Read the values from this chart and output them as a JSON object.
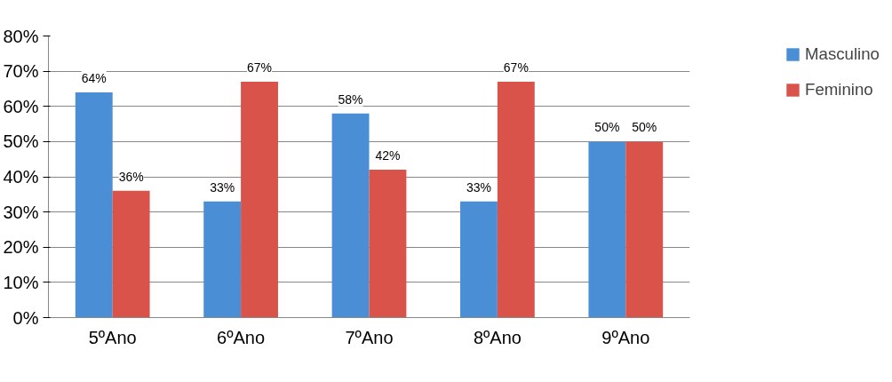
{
  "chart_data": {
    "type": "bar",
    "categories": [
      "5ºAno",
      "6ºAno",
      "7ºAno",
      "8ºAno",
      "9ºAno"
    ],
    "series": [
      {
        "name": "Masculino",
        "color": "#4a8fd6",
        "values": [
          64,
          33,
          58,
          33,
          50
        ],
        "value_labels": [
          "64%",
          "33%",
          "58%",
          "33%",
          "50%"
        ]
      },
      {
        "name": "Feminino",
        "color": "#d9534a",
        "values": [
          36,
          67,
          42,
          67,
          50
        ],
        "value_labels": [
          "36%",
          "67%",
          "42%",
          "67%",
          "50%"
        ]
      }
    ],
    "ylim": [
      0,
      80
    ],
    "yticks": [
      {
        "value": 0,
        "label": "0%"
      },
      {
        "value": 10,
        "label": "10%"
      },
      {
        "value": 20,
        "label": "20%"
      },
      {
        "value": 30,
        "label": "30%"
      },
      {
        "value": 40,
        "label": "40%"
      },
      {
        "value": 50,
        "label": "50%"
      },
      {
        "value": 60,
        "label": "60%"
      },
      {
        "value": 70,
        "label": "70%"
      },
      {
        "value": 80,
        "label": "80%"
      }
    ],
    "grid": "y",
    "legend": "right"
  }
}
